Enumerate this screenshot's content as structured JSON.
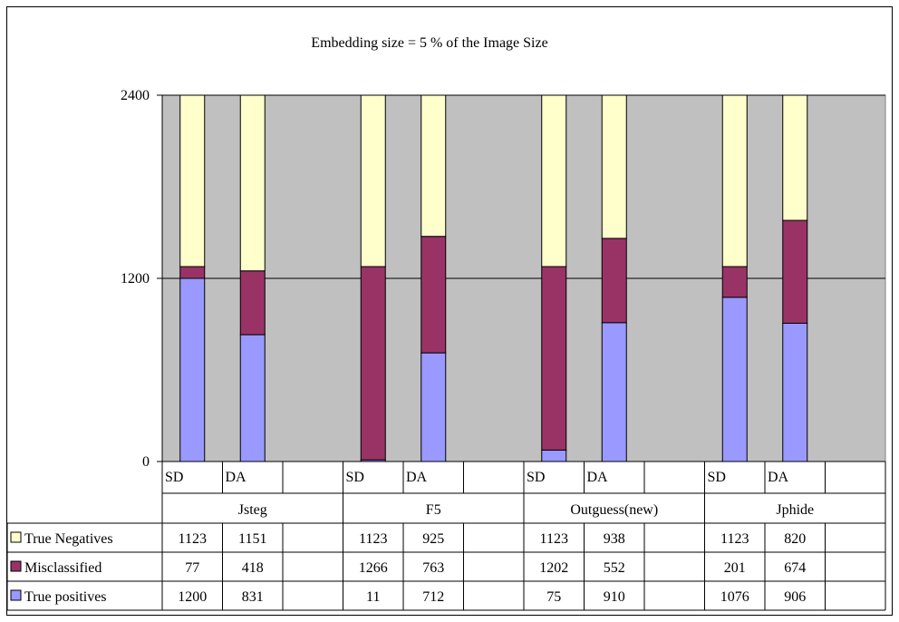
{
  "chart_data": {
    "type": "bar",
    "stacked": true,
    "title": "Embedding size = 5 % of the Image Size",
    "xlabel": "",
    "ylabel": "",
    "ylim": [
      0,
      2400
    ],
    "yticks": [
      "0",
      "1200",
      "2400"
    ],
    "grid": true,
    "legend_placement": "bottom-left (data table)",
    "groups": [
      "Jsteg",
      "F5",
      "Outguess(new)",
      "Jphide"
    ],
    "categories": [
      "SD",
      "DA"
    ],
    "series": [
      {
        "name": "True Negatives",
        "color": "#ffffcc",
        "values": [
          [
            1123,
            1151
          ],
          [
            1123,
            925
          ],
          [
            1123,
            938
          ],
          [
            1123,
            820
          ]
        ]
      },
      {
        "name": "Misclassified",
        "color": "#993366",
        "values": [
          [
            77,
            418
          ],
          [
            1266,
            763
          ],
          [
            1202,
            552
          ],
          [
            201,
            674
          ]
        ]
      },
      {
        "name": "True positives",
        "color": "#9999ff",
        "values": [
          [
            1200,
            831
          ],
          [
            11,
            712
          ],
          [
            75,
            910
          ],
          [
            1076,
            906
          ]
        ]
      }
    ],
    "plot_background": "#c0c0c0"
  }
}
